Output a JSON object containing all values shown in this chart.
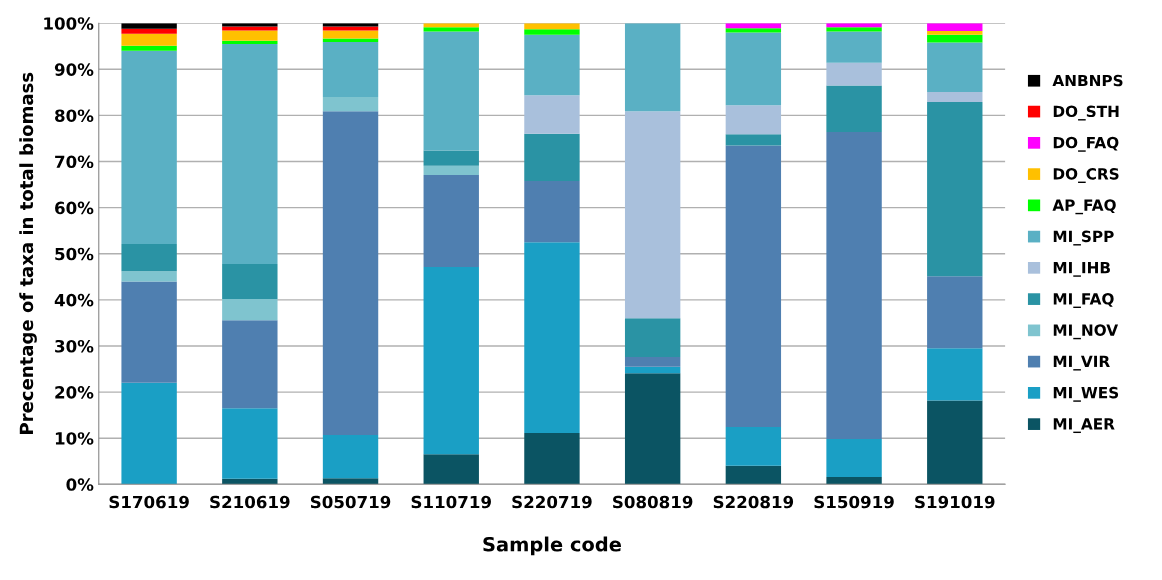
{
  "chart_data": {
    "type": "bar",
    "stacked": true,
    "xlabel": "Sample code",
    "ylabel": "Precentage of taxa in total biomass",
    "categories": [
      "S170619",
      "S210619",
      "S050719",
      "S110719",
      "S220719",
      "S080819",
      "S220819",
      "S150919",
      "S191019"
    ],
    "ylim": [
      0,
      100
    ],
    "yticks": [
      {
        "value": 0,
        "label": "0%"
      },
      {
        "value": 10,
        "label": "10%"
      },
      {
        "value": 20,
        "label": "20%"
      },
      {
        "value": 30,
        "label": "30%"
      },
      {
        "value": 40,
        "label": "40%"
      },
      {
        "value": 50,
        "label": "50%"
      },
      {
        "value": 60,
        "label": "60%"
      },
      {
        "value": 70,
        "label": "70%"
      },
      {
        "value": 80,
        "label": "80%"
      },
      {
        "value": 90,
        "label": "90%"
      },
      {
        "value": 100,
        "label": "100%"
      }
    ],
    "grid": "y",
    "legend": "right",
    "series": [
      {
        "name": "MI_AER",
        "color": "#0b5463",
        "values": [
          0,
          1.2,
          1.3,
          6.5,
          11.1,
          24.1,
          4.0,
          1.6,
          18.2
        ]
      },
      {
        "name": "MI_WES",
        "color": "#1a9fc5",
        "values": [
          22,
          15.3,
          9.4,
          40.6,
          41.4,
          1.4,
          8.4,
          8.2,
          11.3
        ]
      },
      {
        "name": "MI_VIR",
        "color": "#4f7fb0",
        "values": [
          22,
          19.1,
          70.2,
          20.0,
          13.3,
          2.1,
          61.1,
          66.6,
          15.6
        ]
      },
      {
        "name": "MI_NOV",
        "color": "#7fc4cf",
        "values": [
          2.2,
          4.6,
          3.1,
          2.0,
          0,
          0,
          0,
          0,
          0
        ]
      },
      {
        "name": "MI_FAQ",
        "color": "#2a93a4",
        "values": [
          5.9,
          7.6,
          0,
          3.3,
          10.2,
          8.4,
          2.4,
          10.1,
          37.8
        ]
      },
      {
        "name": "MI_IHB",
        "color": "#a9c0dc",
        "values": [
          0,
          0,
          0,
          0,
          8.4,
          44.9,
          6.3,
          4.9,
          2.2
        ]
      },
      {
        "name": "MI_SPP",
        "color": "#5ab0c4",
        "values": [
          41.9,
          47.7,
          11.9,
          25.8,
          13.1,
          19.1,
          15.8,
          6.8,
          10.7
        ]
      },
      {
        "name": "AP_FAQ",
        "color": "#00ff00",
        "values": [
          1.1,
          0.7,
          0.8,
          0.9,
          1.2,
          0,
          0.9,
          0.9,
          1.7
        ]
      },
      {
        "name": "DO_CRS",
        "color": "#ffc000",
        "values": [
          2.6,
          2.2,
          1.7,
          0.9,
          1.3,
          0,
          0,
          0,
          0.8
        ]
      },
      {
        "name": "DO_FAQ",
        "color": "#ff00ff",
        "values": [
          0,
          0,
          0,
          0,
          0,
          0,
          1.1,
          0.9,
          1.7
        ]
      },
      {
        "name": "DO_STH",
        "color": "#ff0000",
        "values": [
          1.1,
          0.9,
          0.9,
          0,
          0,
          0,
          0,
          0,
          0
        ]
      },
      {
        "name": "ANBNPS",
        "color": "#000000",
        "values": [
          1.2,
          0.7,
          0.7,
          0,
          0,
          0,
          0,
          0,
          0
        ]
      }
    ]
  }
}
